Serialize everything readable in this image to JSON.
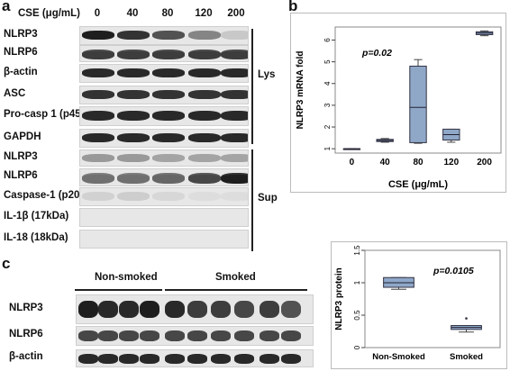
{
  "panel_a": {
    "letter": "a",
    "cse_header": "CSE (μg/mL)",
    "concentrations": [
      "0",
      "40",
      "80",
      "120",
      "200"
    ],
    "lys_label": "Lys",
    "sup_label": "Sup",
    "rows": [
      {
        "label": "NLRP3",
        "intensity": [
          0.95,
          0.85,
          0.7,
          0.45,
          0.12
        ]
      },
      {
        "label": "NLRP6",
        "intensity": [
          0.8,
          0.8,
          0.8,
          0.8,
          0.8
        ]
      },
      {
        "label": "β-actin",
        "intensity": [
          0.9,
          0.9,
          0.9,
          0.9,
          0.9
        ]
      },
      {
        "label": "ASC",
        "intensity": [
          0.85,
          0.85,
          0.85,
          0.85,
          0.85
        ]
      },
      {
        "label": "Pro-casp 1 (p45)",
        "intensity": [
          0.9,
          0.9,
          0.9,
          0.9,
          0.9
        ]
      },
      {
        "label": "GAPDH",
        "intensity": [
          0.9,
          0.9,
          0.9,
          0.9,
          0.9
        ]
      },
      {
        "label": "NLRP3",
        "intensity": [
          0.35,
          0.35,
          0.3,
          0.3,
          0.3
        ]
      },
      {
        "label": "NLRP6",
        "intensity": [
          0.55,
          0.55,
          0.6,
          0.75,
          0.95
        ]
      },
      {
        "label": "Caspase-1 (p20)",
        "intensity": [
          0.08,
          0.1,
          0.05,
          0.02,
          0.02
        ]
      },
      {
        "label": "IL-1β (17kDa)",
        "intensity": [
          0,
          0,
          0,
          0,
          0
        ]
      },
      {
        "label": "IL-18 (18kDa)",
        "intensity": [
          0,
          0,
          0,
          0,
          0
        ]
      }
    ]
  },
  "panel_b": {
    "letter": "b",
    "pvalue": "p=0.02",
    "chart_data": {
      "type": "box",
      "categories": [
        "0",
        "40",
        "80",
        "120",
        "200"
      ],
      "xlabel": "CSE (μg/mL)",
      "ylabel": "NLRP3 mRNA fold",
      "ylim": [
        0.8,
        6.6
      ],
      "yticks": [
        1,
        2,
        3,
        4,
        5,
        6
      ],
      "boxes": [
        {
          "min": 1.0,
          "q1": 1.0,
          "median": 1.0,
          "q3": 1.0,
          "max": 1.0
        },
        {
          "min": 1.3,
          "q1": 1.33,
          "median": 1.38,
          "q3": 1.43,
          "max": 1.47
        },
        {
          "min": 1.25,
          "q1": 1.28,
          "median": 2.9,
          "q3": 4.8,
          "max": 5.1
        },
        {
          "min": 1.3,
          "q1": 1.4,
          "median": 1.65,
          "q3": 1.9,
          "max": 1.9
        },
        {
          "min": 6.2,
          "q1": 6.25,
          "median": 6.32,
          "q3": 6.38,
          "max": 6.42
        }
      ],
      "box_color": "#8fa8c8"
    }
  },
  "panel_c": {
    "letter": "c",
    "group_non": "Non-smoked",
    "group_smoked": "Smoked",
    "rows": [
      {
        "label": "NLRP3",
        "intensity": [
          0.95,
          0.9,
          0.9,
          0.95,
          0.9,
          0.8,
          0.8,
          0.75,
          0.8,
          0.7
        ]
      },
      {
        "label": "NLRP6",
        "intensity": [
          0.75,
          0.75,
          0.75,
          0.75,
          0.75,
          0.75,
          0.75,
          0.75,
          0.75,
          0.75
        ]
      },
      {
        "label": "β-actin",
        "intensity": [
          0.9,
          0.9,
          0.9,
          0.9,
          0.9,
          0.9,
          0.9,
          0.9,
          0.9,
          0.9
        ]
      }
    ]
  },
  "panel_d": {
    "pvalue": "p=0.0105",
    "chart_data": {
      "type": "box",
      "categories": [
        "Non-Smoked",
        "Smoked"
      ],
      "ylabel": "NLRP3 protein",
      "ylim": [
        0,
        1.5
      ],
      "yticks": [
        0,
        0.5,
        1,
        1.5
      ],
      "ytick_labels": [
        "0",
        "0.5",
        "1",
        "1.5"
      ],
      "boxes": [
        {
          "min": 0.9,
          "q1": 0.93,
          "median": 1.0,
          "q3": 1.08,
          "max": 1.08
        },
        {
          "min": 0.24,
          "q1": 0.28,
          "median": 0.31,
          "q3": 0.34,
          "max": 0.34,
          "outliers": [
            0.45
          ]
        }
      ],
      "box_color": "#8fa8c8"
    }
  }
}
